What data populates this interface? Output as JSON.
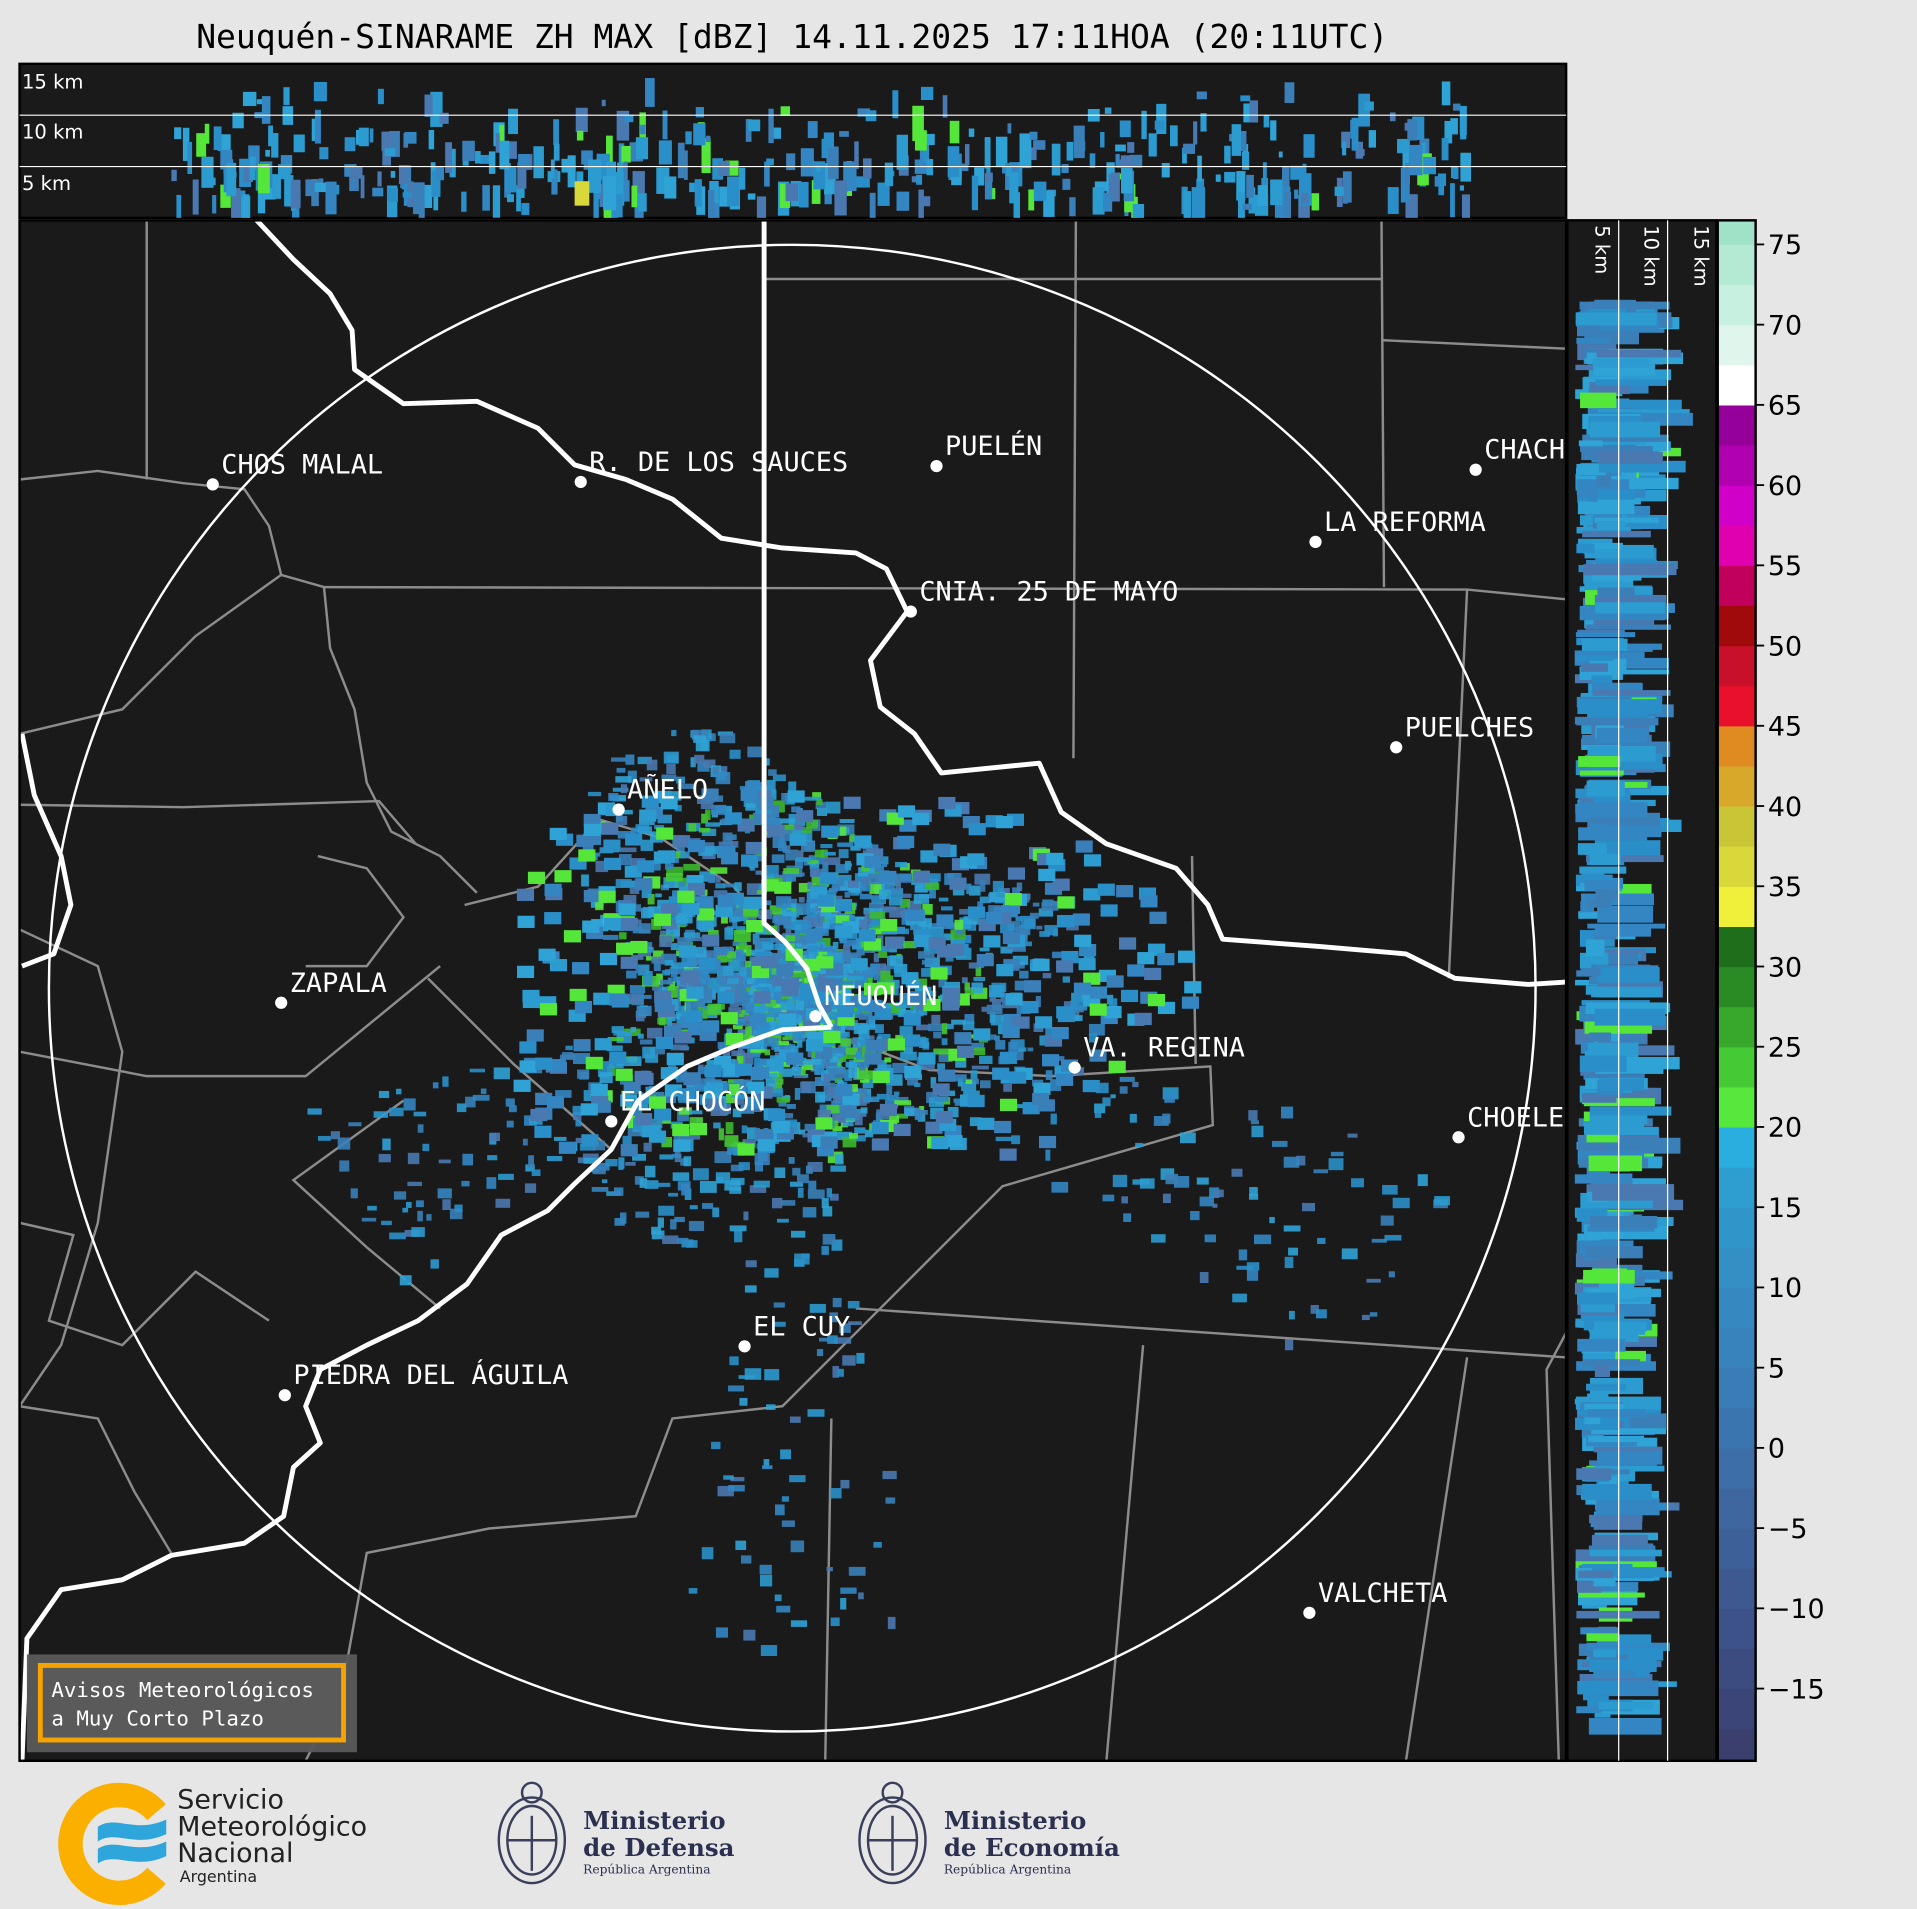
{
  "title": "Neuquén-SINARAME ZH MAX [dBZ] 14.11.2025 17:11HOA (20:11UTC)",
  "top_panel": {
    "labels": [
      "15 km",
      "10 km",
      "5 km"
    ]
  },
  "side_panel": {
    "labels": [
      "5 km",
      "10 km",
      "15 km"
    ]
  },
  "cities": [
    {
      "name": "CHOS MALAL"
    },
    {
      "name": "R. DE LOS SAUCES"
    },
    {
      "name": "PUELÉN"
    },
    {
      "name": "CHACHARRAMENDI"
    },
    {
      "name": "LA REFORMA"
    },
    {
      "name": "CNIA. 25 DE MAYO"
    },
    {
      "name": "PUELCHES"
    },
    {
      "name": "AÑELO"
    },
    {
      "name": "ZAPALA"
    },
    {
      "name": "NEUQUÉN"
    },
    {
      "name": "VA. REGINA"
    },
    {
      "name": "EL CHOCÓN"
    },
    {
      "name": "CHOELE CHOEL"
    },
    {
      "name": "EL CUY"
    },
    {
      "name": "PIEDRA DEL ÁGUILA"
    },
    {
      "name": "VALCHETA"
    }
  ],
  "warning_box": {
    "line1": "Avisos Meteorológicos",
    "line2": "a Muy Corto Plazo",
    "border_color": "#f5a300"
  },
  "colorbar": {
    "unit": "dBZ",
    "range": [
      -19.5,
      76.5
    ],
    "bin_start": -20,
    "bin_width": 2.5,
    "colors": [
      "#3a3f6e",
      "#3b4577",
      "#3c4b80",
      "#3d5288",
      "#3e5990",
      "#3e6098",
      "#3e67a0",
      "#3d6ea8",
      "#3b75af",
      "#3a7cb5",
      "#3883bb",
      "#3689c0",
      "#338fc4",
      "#3096c9",
      "#2d9ecf",
      "#29aedf",
      "#56e83d",
      "#45c934",
      "#38a82c",
      "#2a8a24",
      "#1f6e1c",
      "#f0f03a",
      "#d8d83a",
      "#c8c636",
      "#d8a82a",
      "#e08a22",
      "#e8102a",
      "#c8102a",
      "#a00a0a",
      "#c0005a",
      "#e000b0",
      "#d000c8",
      "#b000b0",
      "#96009a",
      "#ffffff",
      "#e0f5ec",
      "#c8f0e0",
      "#b4ead4",
      "#a0e2c8",
      "#8edcbf",
      "#88dcbc"
    ],
    "ticks": [
      "75",
      "70",
      "65",
      "60",
      "55",
      "50",
      "45",
      "40",
      "35",
      "30",
      "25",
      "20",
      "15",
      "10",
      "5",
      "0",
      "−5",
      "−10",
      "−15"
    ],
    "tick_values": [
      75,
      70,
      65,
      60,
      55,
      50,
      45,
      40,
      35,
      30,
      25,
      20,
      15,
      10,
      5,
      0,
      -5,
      -10,
      -15
    ]
  },
  "logos": {
    "smn": {
      "line1": "Servicio",
      "line2": "Meteorológico",
      "line3": "Nacional",
      "line4": "Argentina",
      "orange": "#fbb000",
      "blue": "#2ea6dc"
    },
    "defensa": {
      "line1": "Ministerio",
      "line2": "de Defensa",
      "line3": "República Argentina"
    },
    "economia": {
      "line1": "Ministerio",
      "line2": "de Economía",
      "line3": "República Argentina"
    }
  }
}
